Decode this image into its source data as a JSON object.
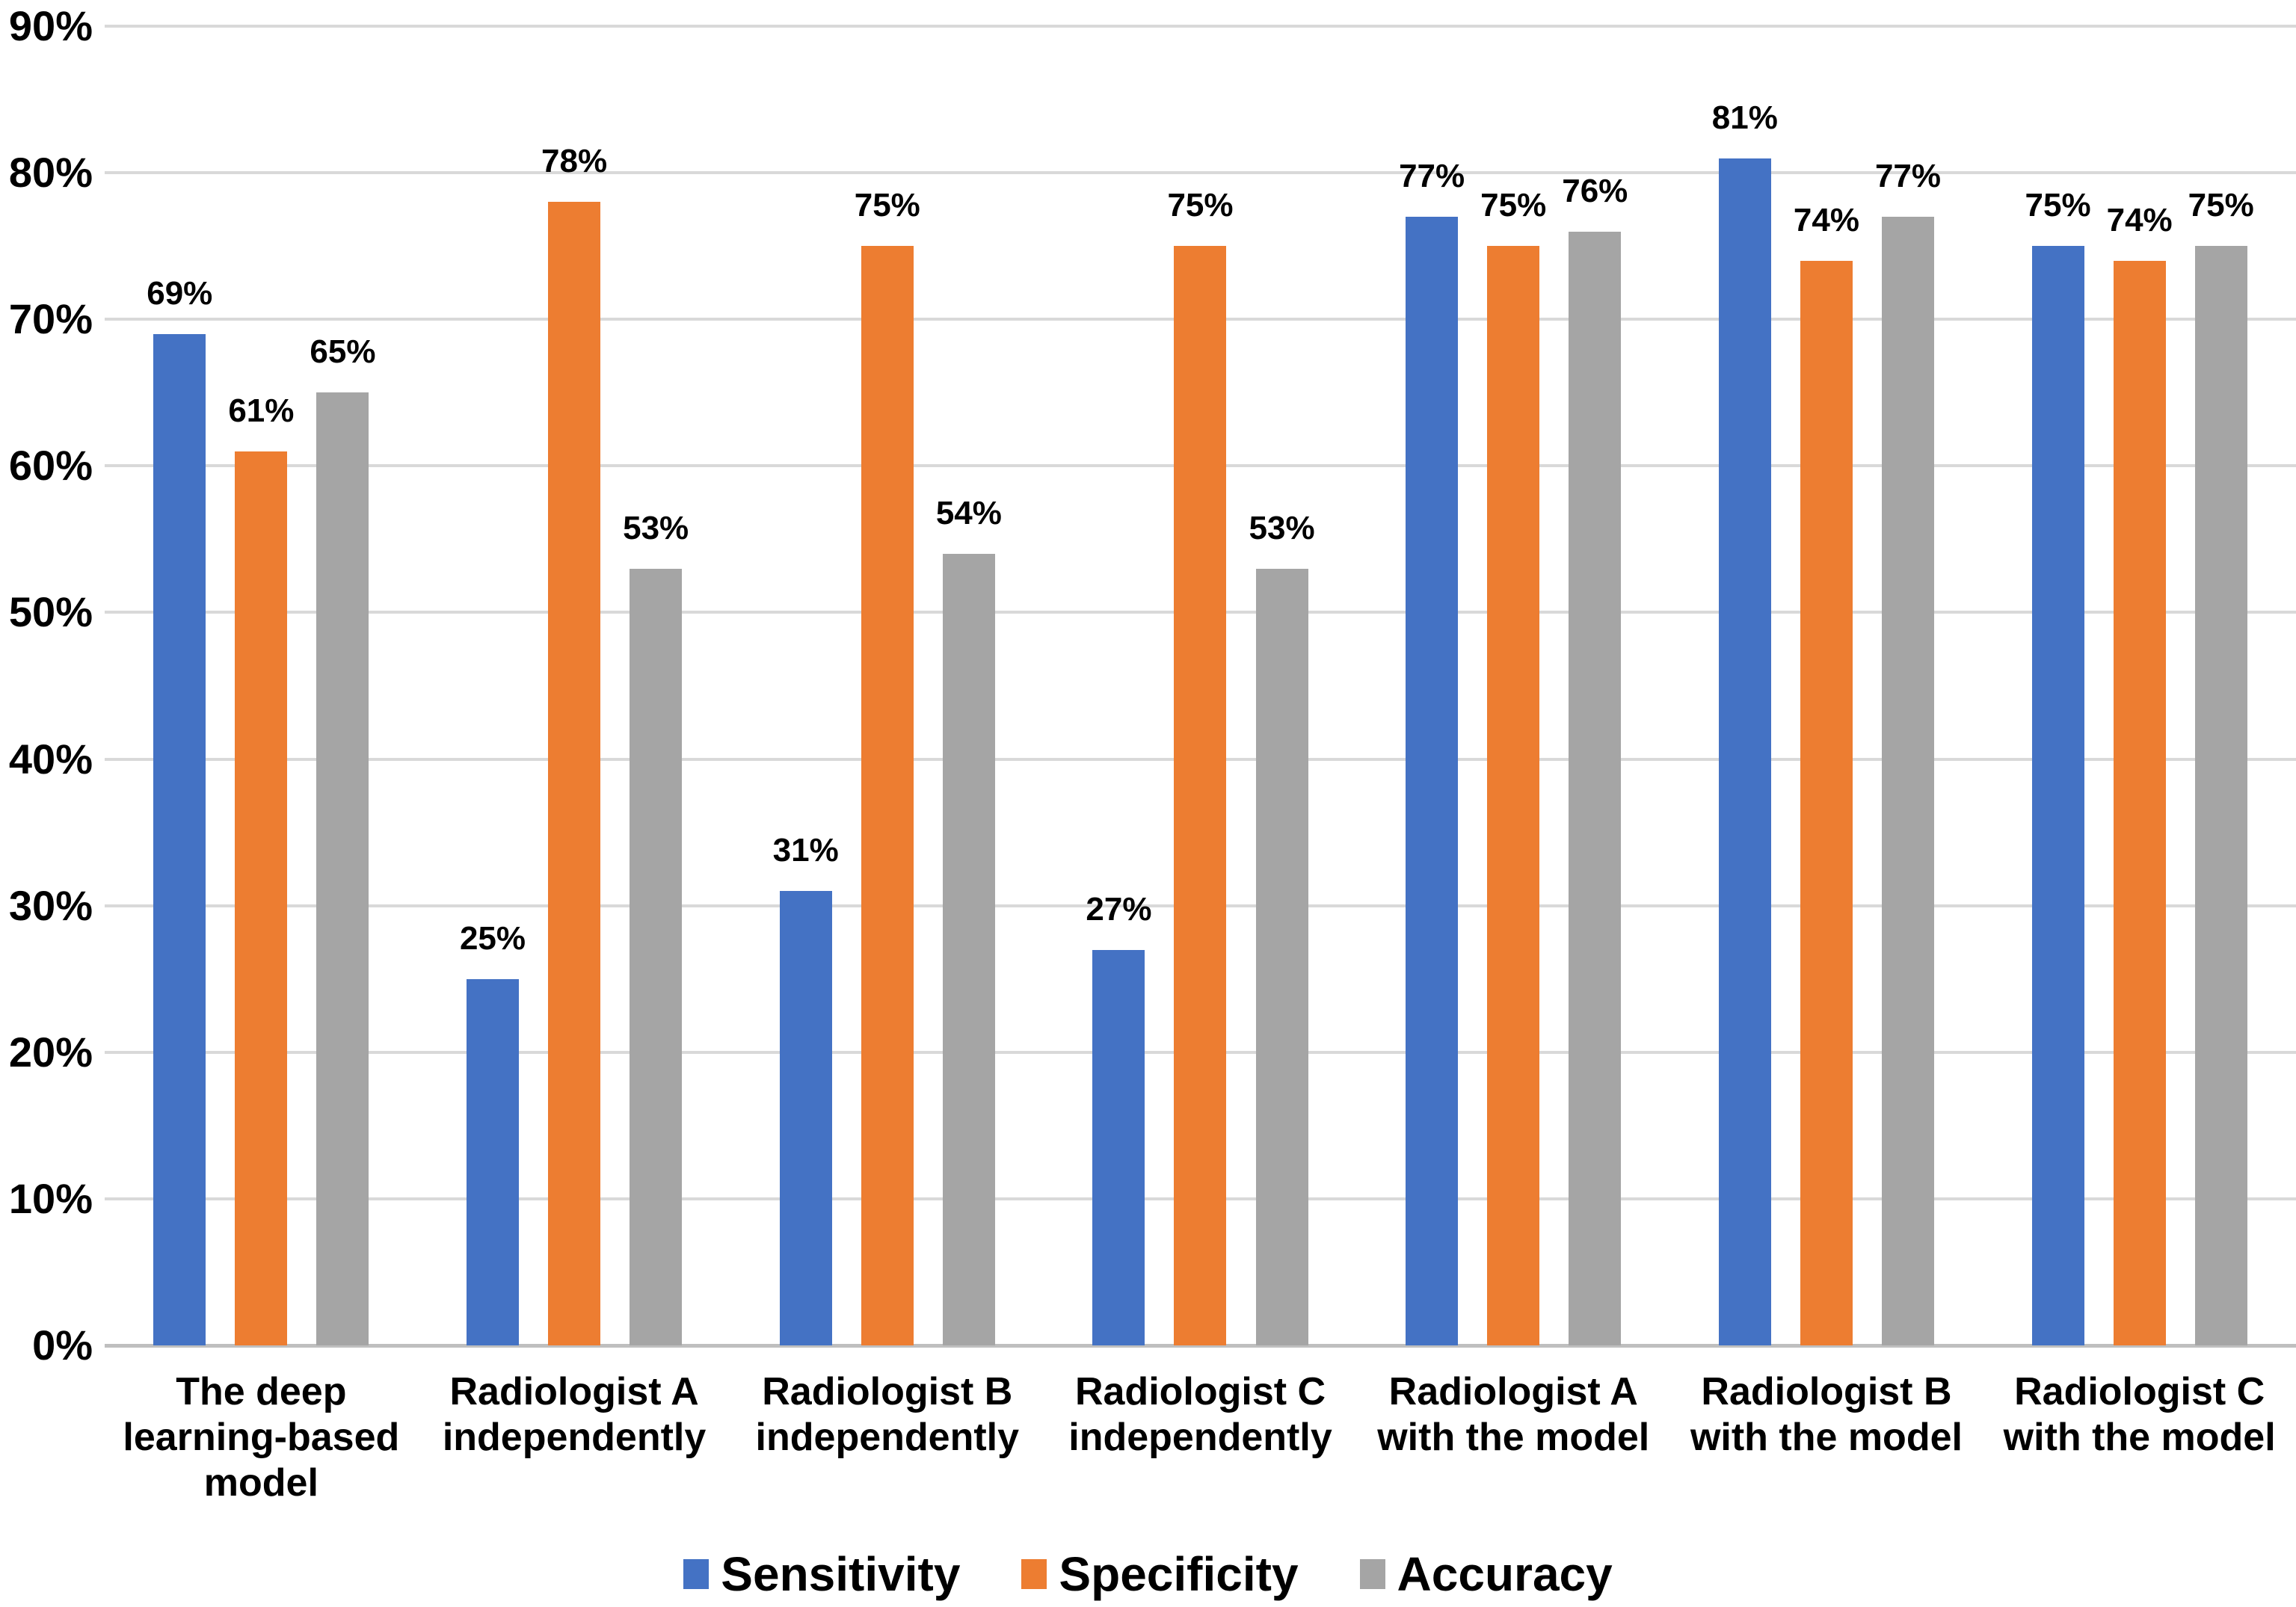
{
  "chart_data": {
    "type": "bar",
    "title": "",
    "categories": [
      "The deep\nlearning-based\nmodel",
      "Radiologist A\nindependently",
      "Radiologist B\nindependently",
      "Radiologist C\nindependently",
      "Radiologist A\nwith the model",
      "Radiologist B\nwith the model",
      "Radiologist C\nwith the model"
    ],
    "series": [
      {
        "name": "Sensitivity",
        "color": "#4472C4",
        "values": [
          69,
          25,
          31,
          27,
          77,
          81,
          75
        ]
      },
      {
        "name": "Specificity",
        "color": "#ED7D31",
        "values": [
          61,
          78,
          75,
          75,
          75,
          74,
          74
        ]
      },
      {
        "name": "Accuracy",
        "color": "#A5A5A5",
        "values": [
          65,
          53,
          54,
          53,
          76,
          77,
          75
        ]
      }
    ],
    "value_suffix": "%",
    "ylim": [
      0,
      90
    ],
    "yticks": [
      "0%",
      "10%",
      "20%",
      "30%",
      "40%",
      "50%",
      "60%",
      "70%",
      "80%",
      "90%"
    ],
    "grid": true,
    "gridline_color": "#D9D9D9",
    "axis_line_color": "#BFBFBF",
    "data_labels": true,
    "legend_position": "bottom",
    "background": "#FFFFFF",
    "text_color": "#000000"
  }
}
